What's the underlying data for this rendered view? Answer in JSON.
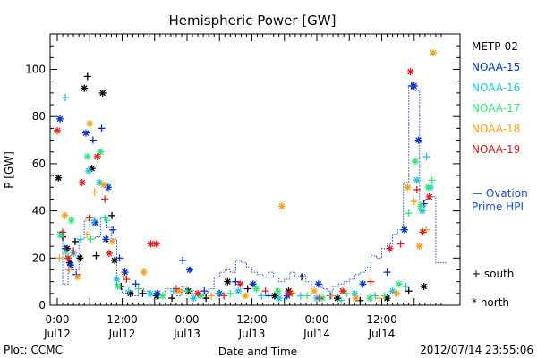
{
  "chart_data": {
    "type": "scatter",
    "title": "Hemispheric Power [GW]",
    "ylabel": "P [GW]",
    "xlabel": "Date and Time",
    "ylim": [
      0,
      115
    ],
    "xlim": [
      0,
      72
    ],
    "yticks": [
      0,
      20,
      40,
      60,
      80,
      100
    ],
    "xticks": [
      {
        "x": 0,
        "time": "0:00",
        "day": "Jul12"
      },
      {
        "x": 12,
        "time": "12:00",
        "day": "Jul12"
      },
      {
        "x": 24,
        "time": "0:00",
        "day": "Jul13"
      },
      {
        "x": 36,
        "time": "12:00",
        "day": "Jul13"
      },
      {
        "x": 48,
        "time": "0:00",
        "day": "Jul14"
      },
      {
        "x": 60,
        "time": "12:00",
        "day": "Jul14"
      }
    ],
    "series": [
      {
        "name": "METP-02",
        "color": "#000000",
        "points": [
          [
            0.2,
            54,
            "north"
          ],
          [
            1.0,
            29,
            "south"
          ],
          [
            1.8,
            24,
            "north"
          ],
          [
            2.3,
            18,
            "north"
          ],
          [
            3.3,
            27,
            "south"
          ],
          [
            4.2,
            20,
            "north"
          ],
          [
            5.0,
            92,
            "north"
          ],
          [
            5.6,
            97,
            "south"
          ],
          [
            6.4,
            58,
            "north"
          ],
          [
            7.2,
            21,
            "south"
          ],
          [
            8.4,
            90,
            "north"
          ],
          [
            10.1,
            38,
            "south"
          ],
          [
            10.6,
            19,
            "north"
          ],
          [
            11.8,
            8,
            "south"
          ],
          [
            13.5,
            5,
            "north"
          ],
          [
            15.8,
            5,
            "south"
          ],
          [
            18.4,
            4,
            "north"
          ],
          [
            21.2,
            3,
            "south"
          ],
          [
            24.2,
            6,
            "north"
          ],
          [
            27.5,
            3,
            "south"
          ],
          [
            31.5,
            10,
            "north"
          ],
          [
            35.2,
            7,
            "south"
          ],
          [
            40.2,
            4,
            "north"
          ],
          [
            42.8,
            6,
            "north"
          ],
          [
            45.2,
            12,
            "south"
          ],
          [
            51.8,
            3,
            "north"
          ],
          [
            56.0,
            2,
            "south"
          ],
          [
            61.0,
            3,
            "north"
          ],
          [
            65.0,
            6,
            "south"
          ],
          [
            67.8,
            8,
            "north"
          ]
        ]
      },
      {
        "name": "NOAA-15",
        "color": "#0033cc",
        "points": [
          [
            0.5,
            79,
            "north"
          ],
          [
            1.5,
            24,
            "south"
          ],
          [
            2.5,
            17,
            "north"
          ],
          [
            3.5,
            13,
            "south"
          ],
          [
            5.3,
            73,
            "north"
          ],
          [
            6.6,
            70,
            "south"
          ],
          [
            7.0,
            35,
            "north"
          ],
          [
            8.2,
            75,
            "south"
          ],
          [
            9.0,
            28,
            "north"
          ],
          [
            9.4,
            50,
            "north"
          ],
          [
            10.3,
            32,
            "south"
          ],
          [
            11.5,
            20,
            "south"
          ],
          [
            12.5,
            14,
            "north"
          ],
          [
            14.5,
            9,
            "south"
          ],
          [
            18.5,
            5,
            "north"
          ],
          [
            23.2,
            19,
            "south"
          ],
          [
            24.5,
            15,
            "north"
          ],
          [
            27.2,
            6,
            "south"
          ],
          [
            30.0,
            5,
            "north"
          ],
          [
            33.0,
            10,
            "south"
          ],
          [
            36.2,
            9,
            "north"
          ],
          [
            39.0,
            4,
            "south"
          ],
          [
            42.5,
            4,
            "north"
          ],
          [
            48.3,
            9,
            "north"
          ],
          [
            50.5,
            4,
            "south"
          ],
          [
            56.5,
            9,
            "north"
          ],
          [
            61.0,
            14,
            "south"
          ],
          [
            64.2,
            32,
            "north"
          ],
          [
            65.5,
            93,
            "south"
          ],
          [
            66.0,
            93,
            "north"
          ],
          [
            66.8,
            70,
            "north"
          ],
          [
            67.8,
            43,
            "south"
          ]
        ]
      },
      {
        "name": "NOAA-16",
        "color": "#22c4e0",
        "points": [
          [
            0.8,
            30,
            "north"
          ],
          [
            1.5,
            88,
            "south"
          ],
          [
            3.0,
            22,
            "north"
          ],
          [
            4.3,
            28,
            "south"
          ],
          [
            5.8,
            57,
            "north"
          ],
          [
            6.8,
            36,
            "south"
          ],
          [
            7.8,
            52,
            "north"
          ],
          [
            8.8,
            37,
            "south"
          ],
          [
            11.0,
            11,
            "north"
          ],
          [
            13.2,
            6,
            "south"
          ],
          [
            17.2,
            5,
            "north"
          ],
          [
            21.5,
            6,
            "south"
          ],
          [
            25.2,
            3,
            "north"
          ],
          [
            29.8,
            5,
            "south"
          ],
          [
            33.5,
            6,
            "north"
          ],
          [
            37.8,
            4,
            "south"
          ],
          [
            41.0,
            3,
            "north"
          ],
          [
            45.0,
            4,
            "south"
          ],
          [
            48.0,
            3,
            "north"
          ],
          [
            52.5,
            2,
            "south"
          ],
          [
            55.0,
            5,
            "north"
          ],
          [
            58.8,
            4,
            "south"
          ],
          [
            62.0,
            6,
            "north"
          ],
          [
            64.5,
            8,
            "south"
          ],
          [
            66.5,
            53,
            "north"
          ],
          [
            67.5,
            40,
            "north"
          ],
          [
            68.3,
            63,
            "south"
          ],
          [
            69.0,
            50,
            "north"
          ]
        ]
      },
      {
        "name": "NOAA-17",
        "color": "#33e47a",
        "points": [
          [
            0.6,
            30,
            "north"
          ],
          [
            1.6,
            22,
            "south"
          ],
          [
            2.6,
            36,
            "north"
          ],
          [
            5.6,
            63,
            "north"
          ],
          [
            6.2,
            28,
            "south"
          ],
          [
            8.0,
            65,
            "north"
          ],
          [
            9.2,
            36,
            "south"
          ],
          [
            11.2,
            8,
            "north"
          ],
          [
            15.0,
            7,
            "south"
          ],
          [
            19.5,
            4,
            "north"
          ],
          [
            24.0,
            6,
            "south"
          ],
          [
            26.5,
            4,
            "north"
          ],
          [
            32.0,
            5,
            "south"
          ],
          [
            36.8,
            7,
            "north"
          ],
          [
            40.8,
            6,
            "north"
          ],
          [
            46.2,
            4,
            "south"
          ],
          [
            49.0,
            3,
            "north"
          ],
          [
            53.5,
            5,
            "south"
          ],
          [
            57.8,
            3,
            "north"
          ],
          [
            60.5,
            4,
            "south"
          ],
          [
            63.2,
            9,
            "north"
          ],
          [
            65.0,
            39,
            "south"
          ],
          [
            66.2,
            61,
            "north"
          ],
          [
            67.2,
            42,
            "north"
          ],
          [
            68.6,
            50,
            "north"
          ],
          [
            69.3,
            53,
            "south"
          ]
        ]
      },
      {
        "name": "NOAA-18",
        "color": "#f4a020",
        "points": [
          [
            0.4,
            20,
            "south"
          ],
          [
            1.4,
            38,
            "north"
          ],
          [
            2.2,
            15,
            "south"
          ],
          [
            3.8,
            12,
            "north"
          ],
          [
            5.5,
            30,
            "south"
          ],
          [
            6.0,
            77,
            "north"
          ],
          [
            6.9,
            48,
            "south"
          ],
          [
            8.6,
            51,
            "north"
          ],
          [
            10.1,
            27,
            "north"
          ],
          [
            12.2,
            12,
            "south"
          ],
          [
            16.0,
            14,
            "north"
          ],
          [
            22.5,
            6,
            "north"
          ],
          [
            28.5,
            4,
            "south"
          ],
          [
            34.8,
            4,
            "north"
          ],
          [
            41.5,
            42,
            "north"
          ],
          [
            43.5,
            5,
            "south"
          ],
          [
            47.5,
            6,
            "north"
          ],
          [
            50.8,
            4,
            "south"
          ],
          [
            55.2,
            3,
            "north"
          ],
          [
            59.5,
            3,
            "south"
          ],
          [
            62.8,
            5,
            "north"
          ],
          [
            64.8,
            50,
            "north"
          ],
          [
            66.0,
            44,
            "south"
          ],
          [
            67.0,
            25,
            "north"
          ],
          [
            68.2,
            32,
            "south"
          ],
          [
            69.5,
            107,
            "north"
          ]
        ]
      },
      {
        "name": "NOAA-19",
        "color": "#e02020",
        "points": [
          [
            0.0,
            74,
            "north"
          ],
          [
            1.0,
            31,
            "south"
          ],
          [
            2.0,
            20,
            "north"
          ],
          [
            3.0,
            23,
            "south"
          ],
          [
            4.6,
            52,
            "north"
          ],
          [
            5.9,
            37,
            "south"
          ],
          [
            7.4,
            63,
            "north"
          ],
          [
            8.8,
            45,
            "south"
          ],
          [
            9.6,
            22,
            "north"
          ],
          [
            12.8,
            11,
            "south"
          ],
          [
            17.3,
            26,
            "north"
          ],
          [
            18.3,
            26,
            "north"
          ],
          [
            22.0,
            7,
            "south"
          ],
          [
            26.0,
            5,
            "north"
          ],
          [
            30.8,
            4,
            "south"
          ],
          [
            33.8,
            9,
            "north"
          ],
          [
            38.5,
            6,
            "south"
          ],
          [
            43.0,
            5,
            "north"
          ],
          [
            48.5,
            3,
            "south"
          ],
          [
            52.8,
            6,
            "north"
          ],
          [
            58.0,
            10,
            "south"
          ],
          [
            61.5,
            24,
            "north"
          ],
          [
            63.5,
            26,
            "south"
          ],
          [
            65.3,
            99,
            "north"
          ],
          [
            66.5,
            49,
            "south"
          ],
          [
            67.6,
            31,
            "north"
          ],
          [
            68.8,
            46,
            "north"
          ]
        ]
      }
    ],
    "ovation": {
      "label": "— Ovation\nPrime HPI",
      "color": "#1a4fd0",
      "steps": [
        [
          0,
          31
        ],
        [
          1,
          9
        ],
        [
          2,
          17
        ],
        [
          3,
          15
        ],
        [
          4,
          28
        ],
        [
          5,
          36
        ],
        [
          6,
          28
        ],
        [
          7,
          29
        ],
        [
          8,
          37
        ],
        [
          9,
          33
        ],
        [
          10,
          28
        ],
        [
          11,
          8
        ],
        [
          12,
          5
        ],
        [
          13,
          6
        ],
        [
          14,
          4
        ],
        [
          15,
          7
        ],
        [
          16,
          6
        ],
        [
          17,
          4
        ],
        [
          18,
          5
        ],
        [
          19,
          4
        ],
        [
          20,
          7
        ],
        [
          21,
          6
        ],
        [
          22,
          4
        ],
        [
          23,
          8
        ],
        [
          24,
          5
        ],
        [
          25,
          6
        ],
        [
          26,
          4
        ],
        [
          27,
          5
        ],
        [
          28,
          7
        ],
        [
          29,
          12
        ],
        [
          30,
          14
        ],
        [
          31,
          15
        ],
        [
          32,
          14
        ],
        [
          33,
          19
        ],
        [
          34,
          18
        ],
        [
          35,
          16
        ],
        [
          36,
          14
        ],
        [
          37,
          13
        ],
        [
          38,
          12
        ],
        [
          39,
          14
        ],
        [
          40,
          12
        ],
        [
          41,
          10
        ],
        [
          42,
          11
        ],
        [
          43,
          14
        ],
        [
          44,
          12
        ],
        [
          45,
          13
        ],
        [
          46,
          10
        ],
        [
          47,
          8
        ],
        [
          48,
          9
        ],
        [
          49,
          7
        ],
        [
          50,
          6
        ],
        [
          51,
          8
        ],
        [
          52,
          9
        ],
        [
          53,
          10
        ],
        [
          54,
          11
        ],
        [
          55,
          13
        ],
        [
          56,
          14
        ],
        [
          57,
          16
        ],
        [
          58,
          21
        ],
        [
          59,
          20
        ],
        [
          60,
          24
        ],
        [
          61,
          26
        ],
        [
          62,
          30
        ],
        [
          63,
          32
        ],
        [
          64,
          52
        ],
        [
          65,
          93
        ],
        [
          66,
          91
        ],
        [
          67,
          40
        ],
        [
          68,
          45
        ],
        [
          69,
          46
        ],
        [
          70,
          18
        ],
        [
          71,
          18
        ]
      ]
    },
    "markers_legend": [
      {
        "symbol": "+",
        "label": "south"
      },
      {
        "symbol": "*",
        "label": "north"
      }
    ]
  },
  "footer": {
    "plot_credit": "Plot: CCMC",
    "timestamp": "2012/07/14 23:55:06"
  }
}
